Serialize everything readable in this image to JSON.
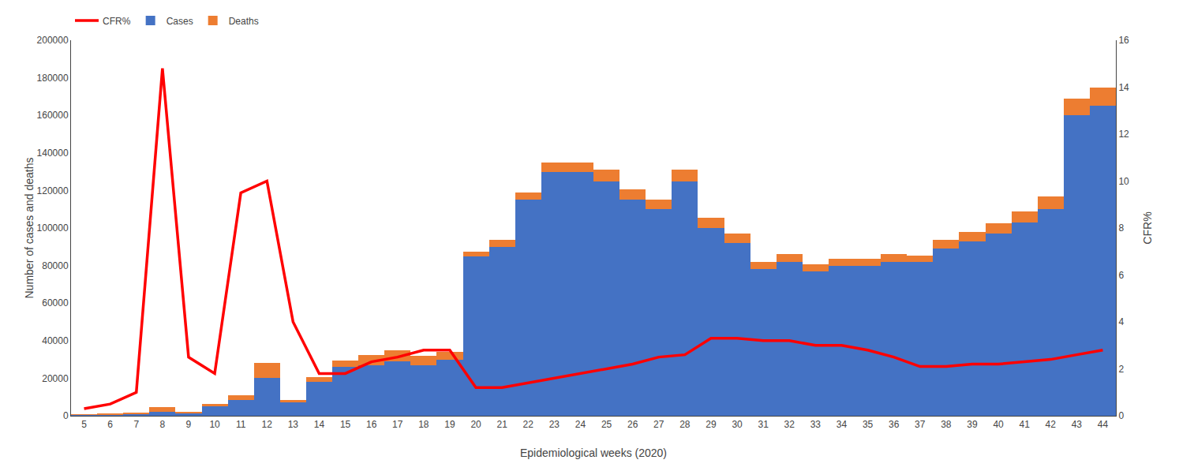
{
  "chart_data": {
    "type": "bar",
    "stacked": true,
    "grid": false,
    "legend": "upper left",
    "xlabel": "Epidemiological weeks (2020)",
    "ylabel": "Number of cases and deaths",
    "y2label": "CFR%",
    "categories": [
      5,
      6,
      7,
      8,
      9,
      10,
      11,
      12,
      13,
      14,
      15,
      16,
      17,
      18,
      19,
      20,
      21,
      22,
      23,
      24,
      25,
      26,
      27,
      28,
      29,
      30,
      31,
      32,
      33,
      34,
      35,
      36,
      37,
      38,
      39,
      40,
      41,
      42,
      43,
      44
    ],
    "series": [
      {
        "name": "Cases",
        "type": "bar",
        "color": "#4472C4",
        "values": [
          500,
          700,
          1000,
          2000,
          1500,
          5000,
          8500,
          20000,
          7000,
          18000,
          26000,
          27000,
          29000,
          27000,
          30000,
          85000,
          90000,
          115000,
          130000,
          130000,
          125000,
          115000,
          110000,
          125000,
          100000,
          92000,
          78000,
          82000,
          77000,
          80000,
          80000,
          82000,
          82000,
          89000,
          93000,
          97000,
          103000,
          110000,
          160000,
          165000
        ]
      },
      {
        "name": "Deaths",
        "type": "bar",
        "color": "#ED7D31",
        "values": [
          100,
          200,
          300,
          2500,
          700,
          1500,
          2500,
          8000,
          1500,
          2500,
          3500,
          5500,
          6000,
          5000,
          4000,
          2500,
          3500,
          4000,
          5000,
          5000,
          6000,
          5500,
          5000,
          6000,
          5500,
          5000,
          4000,
          4000,
          3500,
          3500,
          3500,
          4000,
          3500,
          4500,
          5000,
          5500,
          6000,
          7000,
          9000,
          10000
        ]
      },
      {
        "name": "CFR%",
        "type": "line",
        "axis": "y2",
        "color": "#FF0000",
        "values": [
          0.3,
          0.5,
          1.0,
          14.8,
          2.5,
          1.8,
          9.5,
          10.0,
          4.0,
          1.8,
          1.8,
          2.3,
          2.5,
          2.8,
          2.8,
          1.2,
          1.2,
          1.4,
          1.6,
          1.8,
          2.0,
          2.2,
          2.5,
          2.6,
          3.3,
          3.3,
          3.2,
          3.2,
          3.0,
          3.0,
          2.8,
          2.5,
          2.1,
          2.1,
          2.2,
          2.2,
          2.3,
          2.4,
          2.6,
          2.8
        ]
      }
    ],
    "ylim": [
      0,
      200000
    ],
    "yticks": [
      0,
      20000,
      40000,
      60000,
      80000,
      100000,
      120000,
      140000,
      160000,
      180000,
      200000
    ],
    "y2lim": [
      0,
      16
    ],
    "y2ticks": [
      0,
      2,
      4,
      6,
      8,
      10,
      12,
      14,
      16
    ]
  }
}
